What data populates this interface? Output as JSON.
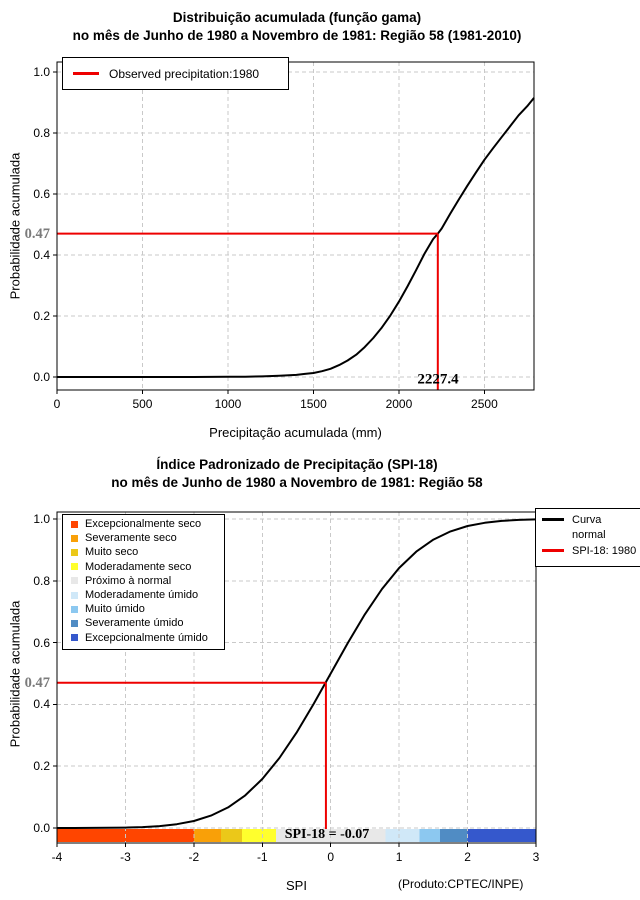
{
  "colors": {
    "marker_red": "#EE0000",
    "prob_label_gray": "#7B7B7B",
    "grid_gray": "#C9C9C9",
    "curve_black": "#000000"
  },
  "chart_data": [
    {
      "type": "line",
      "title": "Distribuição acumulada (função gama)",
      "subtitle": "no mês de Junho de 1980 a Novembro de 1981: Região 58 (1981-2010)",
      "xlabel": "Precipitação acumulada (mm)",
      "ylabel": "Probabilidade acumulada",
      "xlim": [
        0,
        2790
      ],
      "ylim": [
        0,
        1
      ],
      "grid": true,
      "x_ticks": {
        "values": [
          0,
          500,
          1000,
          1500,
          2000,
          2500
        ],
        "labels": [
          "0",
          "500",
          "1000",
          "1500",
          "2000",
          "2500"
        ]
      },
      "y_ticks": {
        "values": [
          0,
          0.2,
          0.4,
          0.6,
          0.8,
          1
        ],
        "labels": [
          "0.0",
          "0.2",
          "0.4",
          "0.6",
          "0.8",
          "1.0"
        ]
      },
      "legend": {
        "position": "top-left",
        "entries": [
          {
            "label": "Observed precipitation:1980",
            "color": "#EE0000"
          }
        ]
      },
      "marker": {
        "prob": 0.47,
        "prob_label": "0.47",
        "value": 2227.4,
        "value_label": "2227.4",
        "color": "#EE0000"
      },
      "series": [
        {
          "name": "gamma-cdf",
          "color": "#000000",
          "points": [
            [
              0,
              0
            ],
            [
              400,
              0
            ],
            [
              800,
              0
            ],
            [
              1000,
              0.0005
            ],
            [
              1100,
              0.001
            ],
            [
              1200,
              0.002
            ],
            [
              1300,
              0.004
            ],
            [
              1400,
              0.007
            ],
            [
              1450,
              0.01
            ],
            [
              1500,
              0.013
            ],
            [
              1550,
              0.019
            ],
            [
              1600,
              0.027
            ],
            [
              1650,
              0.039
            ],
            [
              1700,
              0.054
            ],
            [
              1750,
              0.073
            ],
            [
              1800,
              0.098
            ],
            [
              1850,
              0.128
            ],
            [
              1900,
              0.162
            ],
            [
              1950,
              0.202
            ],
            [
              2000,
              0.247
            ],
            [
              2050,
              0.297
            ],
            [
              2100,
              0.35
            ],
            [
              2150,
              0.405
            ],
            [
              2200,
              0.452
            ],
            [
              2227.4,
              0.47
            ],
            [
              2250,
              0.487
            ],
            [
              2300,
              0.535
            ],
            [
              2350,
              0.582
            ],
            [
              2400,
              0.627
            ],
            [
              2450,
              0.67
            ],
            [
              2500,
              0.712
            ],
            [
              2550,
              0.75
            ],
            [
              2600,
              0.786
            ],
            [
              2650,
              0.822
            ],
            [
              2700,
              0.858
            ],
            [
              2750,
              0.888
            ],
            [
              2790,
              0.915
            ]
          ]
        }
      ]
    },
    {
      "type": "line",
      "title": "Índice Padronizado de Precipitação (SPI-18)",
      "subtitle": "no mês de Junho de 1980 a Novembro de 1981: Região 58",
      "xlabel": "SPI",
      "ylabel": "Probabilidade acumulada",
      "credit": "(Produto:CPTEC/INPE)",
      "xlim": [
        -4,
        3
      ],
      "ylim": [
        0,
        1
      ],
      "grid": true,
      "x_ticks": {
        "values": [
          -4,
          -3,
          -2,
          -1,
          0,
          1,
          2,
          3
        ],
        "labels": [
          "-4",
          "-3",
          "-2",
          "-1",
          "0",
          "1",
          "2",
          "3"
        ]
      },
      "y_ticks": {
        "values": [
          0,
          0.2,
          0.4,
          0.6,
          0.8,
          1
        ],
        "labels": [
          "0.0",
          "0.2",
          "0.4",
          "0.6",
          "0.8",
          "1.0"
        ]
      },
      "category_legend": {
        "position": "top-left",
        "entries": [
          {
            "label": "Excepcionalmente seco",
            "color": "#FF4500"
          },
          {
            "label": "Severamente seco",
            "color": "#F9A008"
          },
          {
            "label": "Muito seco",
            "color": "#EBC819"
          },
          {
            "label": "Moderadamente seco",
            "color": "#FFFF2D"
          },
          {
            "label": "Próximo à normal",
            "color": "#E8E8E8"
          },
          {
            "label": "Moderadamente úmido",
            "color": "#D0E8F8"
          },
          {
            "label": "Muito úmido",
            "color": "#8CC8F0"
          },
          {
            "label": "Severamente úmido",
            "color": "#508CC4"
          },
          {
            "label": "Excepcionalmente úmido",
            "color": "#3558CC"
          }
        ]
      },
      "series_legend": {
        "position": "top-right",
        "entries": [
          {
            "label_lines": [
              "Curva",
              "normal"
            ],
            "color": "#000000"
          },
          {
            "label_lines": [
              "SPI-18: 1980"
            ],
            "color": "#EE0000"
          }
        ]
      },
      "colorbar": {
        "segments": [
          {
            "from": -4,
            "to": -2,
            "color": "#FF4500"
          },
          {
            "from": -2,
            "to": -1.6,
            "color": "#F9A008"
          },
          {
            "from": -1.6,
            "to": -1.3,
            "color": "#EBC819"
          },
          {
            "from": -1.3,
            "to": -0.8,
            "color": "#FFFF2D"
          },
          {
            "from": -0.8,
            "to": 0.8,
            "color": "#E8E8E8"
          },
          {
            "from": 0.8,
            "to": 1.3,
            "color": "#D0E8F8"
          },
          {
            "from": 1.3,
            "to": 1.6,
            "color": "#8CC8F0"
          },
          {
            "from": 1.6,
            "to": 2,
            "color": "#508CC4"
          },
          {
            "from": 2,
            "to": 3,
            "color": "#3558CC"
          }
        ]
      },
      "marker": {
        "prob": 0.47,
        "prob_label": "0.47",
        "value": -0.07,
        "annotation": "SPI-18 = -0.07",
        "color": "#EE0000"
      },
      "series": [
        {
          "name": "normal-cdf",
          "color": "#000000",
          "points": [
            [
              -4,
              0.0
            ],
            [
              -3.75,
              0.0001
            ],
            [
              -3.5,
              0.0002
            ],
            [
              -3.25,
              0.0006
            ],
            [
              -3,
              0.0013
            ],
            [
              -2.75,
              0.003
            ],
            [
              -2.5,
              0.0062
            ],
            [
              -2.25,
              0.0122
            ],
            [
              -2,
              0.0228
            ],
            [
              -1.75,
              0.0401
            ],
            [
              -1.5,
              0.0668
            ],
            [
              -1.25,
              0.1056
            ],
            [
              -1,
              0.1587
            ],
            [
              -0.75,
              0.2266
            ],
            [
              -0.5,
              0.3085
            ],
            [
              -0.25,
              0.4013
            ],
            [
              0,
              0.5
            ],
            [
              0.25,
              0.5987
            ],
            [
              0.5,
              0.6915
            ],
            [
              0.75,
              0.7734
            ],
            [
              1,
              0.8413
            ],
            [
              1.25,
              0.8944
            ],
            [
              1.5,
              0.9332
            ],
            [
              1.75,
              0.9599
            ],
            [
              2,
              0.9772
            ],
            [
              2.25,
              0.9878
            ],
            [
              2.5,
              0.9938
            ],
            [
              2.75,
              0.997
            ],
            [
              3,
              0.9987
            ]
          ]
        }
      ]
    }
  ]
}
